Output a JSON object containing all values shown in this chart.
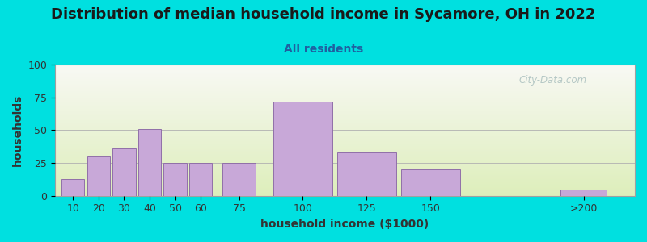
{
  "title": "Distribution of median household income in Sycamore, OH in 2022",
  "subtitle": "All residents",
  "xlabel": "household income ($1000)",
  "ylabel": "households",
  "bar_labels": [
    "10",
    "20",
    "30",
    "40",
    "50",
    "60",
    "75",
    "100",
    "125",
    "150",
    ">200"
  ],
  "bar_heights": [
    13,
    30,
    36,
    51,
    25,
    25,
    25,
    72,
    33,
    20,
    5
  ],
  "bar_color": "#c8a8d8",
  "bar_edge_color": "#9070a8",
  "background_color": "#00e0e0",
  "ylim": [
    0,
    100
  ],
  "yticks": [
    0,
    25,
    50,
    75,
    100
  ],
  "title_fontsize": 13,
  "subtitle_fontsize": 10,
  "axis_label_fontsize": 10,
  "watermark": "City-Data.com",
  "bar_positions": [
    10,
    20,
    30,
    40,
    50,
    60,
    75,
    100,
    125,
    150,
    210
  ],
  "bar_widths": [
    9,
    9,
    9,
    9,
    9,
    9,
    13,
    23,
    23,
    23,
    18
  ],
  "xlim": [
    3,
    230
  ]
}
